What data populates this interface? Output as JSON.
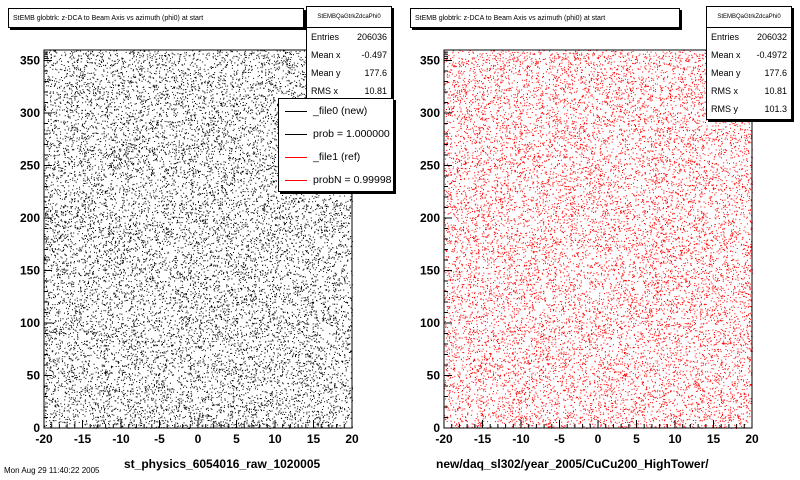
{
  "chart_data": [
    {
      "type": "scatter",
      "title": "StEMB globtrk: z-DCA to Beam Axis vs azimuth (phi0) at start",
      "xlim": [
        -20,
        20
      ],
      "ylim": [
        0,
        360
      ],
      "xticks": [
        "-20",
        "-15",
        "-10",
        "-5",
        "0",
        "5",
        "10",
        "15",
        "20"
      ],
      "yticks": [
        "0",
        "50",
        "100",
        "150",
        "200",
        "250",
        "300",
        "350"
      ],
      "xlabel": "st_physics_6054016_raw_1020005",
      "marker_color": "#000000",
      "stats": {
        "name": "StEMBQaGtrkZdcaPhi0",
        "rows": [
          {
            "label": "Entries",
            "value": "206036"
          },
          {
            "label": "Mean x",
            "value": "-0.497"
          },
          {
            "label": "Mean y",
            "value": "177.6"
          },
          {
            "label": "RMS x",
            "value": "10.81"
          }
        ]
      }
    },
    {
      "type": "scatter",
      "title": "StEMB globtrk: z-DCA to Beam Axis vs azimuth (phi0) at start",
      "xlim": [
        -20,
        20
      ],
      "ylim": [
        0,
        360
      ],
      "xticks": [
        "-20",
        "-15",
        "-10",
        "-5",
        "0",
        "5",
        "10",
        "15",
        "20"
      ],
      "yticks": [
        "0",
        "50",
        "100",
        "150",
        "200",
        "250",
        "300",
        "350"
      ],
      "xlabel": "new/daq_sl302/year_2005/CuCu200_HighTower/",
      "marker_color": "#ff0000",
      "stats": {
        "name": "StEMBQaGtrkZdcaPhi0",
        "rows": [
          {
            "label": "Entries",
            "value": "206032"
          },
          {
            "label": "Mean x",
            "value": "-0.4972"
          },
          {
            "label": "Mean y",
            "value": "177.6"
          },
          {
            "label": "RMS x",
            "value": "10.81"
          },
          {
            "label": "RMS y",
            "value": "101.3"
          }
        ]
      }
    }
  ],
  "legend": {
    "entries": [
      {
        "label": "_file0 (new)",
        "color": "#000000"
      },
      {
        "label": "prob = 1.000000",
        "color": "#000000"
      },
      {
        "label": "_file1 (ref)",
        "color": "#ff0000"
      },
      {
        "label": "probN = 0.99998",
        "color": "#ff0000"
      }
    ]
  },
  "footer": "Mon Aug 29 11:40:22 2005"
}
